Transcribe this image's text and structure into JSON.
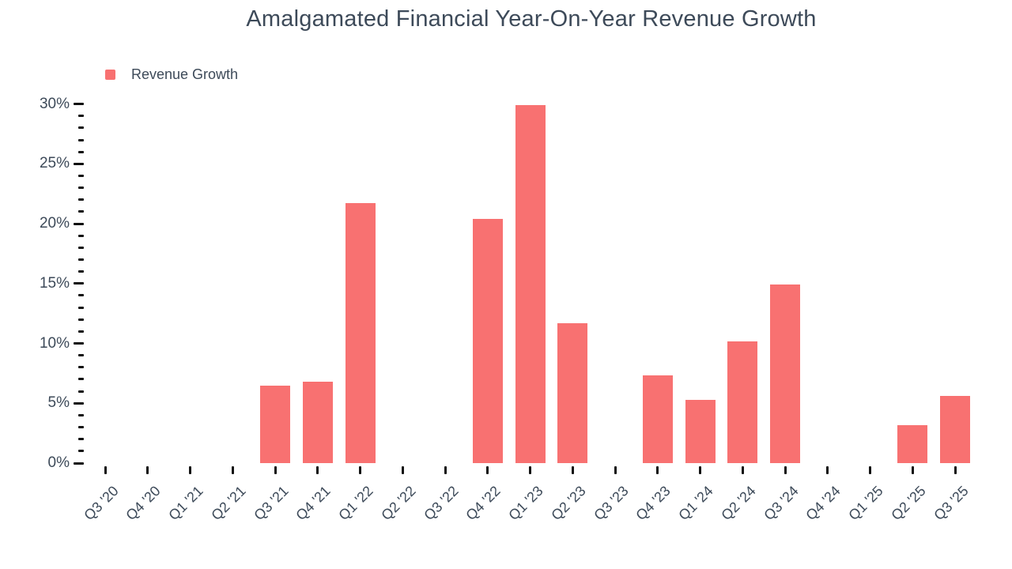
{
  "chart_data": {
    "type": "bar",
    "title": "Amalgamated Financial Year-On-Year Revenue Growth",
    "legend": [
      {
        "label": "Revenue Growth",
        "color": "#f87171"
      }
    ],
    "legend_position": "top-left",
    "grid": "off",
    "unit": "%",
    "categories": [
      "Q3 '20",
      "Q4 '20",
      "Q1 '21",
      "Q2 '21",
      "Q3 '21",
      "Q4 '21",
      "Q1 '22",
      "Q2 '22",
      "Q3 '22",
      "Q4 '22",
      "Q1 '23",
      "Q2 '23",
      "Q3 '23",
      "Q4 '23",
      "Q1 '24",
      "Q2 '24",
      "Q3 '24",
      "Q4 '24",
      "Q1 '25",
      "Q2 '25",
      "Q3 '25"
    ],
    "series": [
      {
        "name": "Revenue Growth",
        "values": [
          null,
          null,
          null,
          null,
          6.5,
          6.8,
          21.7,
          null,
          null,
          20.4,
          29.9,
          11.7,
          null,
          7.3,
          5.3,
          10.2,
          14.9,
          null,
          null,
          3.2,
          5.6
        ]
      }
    ],
    "y_axis": {
      "min": 0,
      "max": 30,
      "major_step": 5,
      "minor_step": 1,
      "ticks": [
        {
          "value": 0,
          "label": "0%"
        },
        {
          "value": 5,
          "label": "5%"
        },
        {
          "value": 10,
          "label": "10%"
        },
        {
          "value": 15,
          "label": "15%"
        },
        {
          "value": 20,
          "label": "20%"
        },
        {
          "value": 25,
          "label": "25%"
        },
        {
          "value": 30,
          "label": "30%"
        }
      ]
    },
    "xlabel": "",
    "ylabel": ""
  },
  "colors": {
    "bar": "#f87171",
    "text": "#3d4a59",
    "tick": "#111111"
  }
}
